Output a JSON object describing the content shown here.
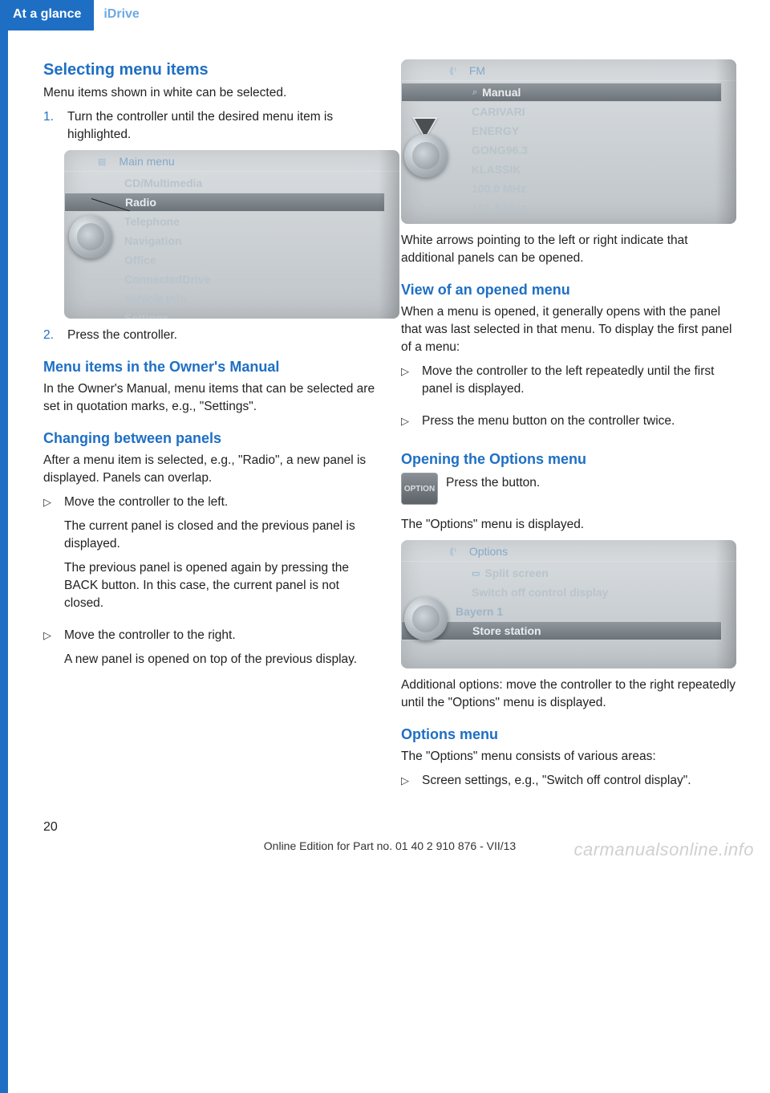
{
  "header": {
    "tab": "At a glance",
    "sub": "iDrive"
  },
  "page_number": "20",
  "footer_line": "Online Edition for Part no. 01 40 2 910 876 - VII/13",
  "watermark": "carmanualsonline.info",
  "left": {
    "h_selecting": "Selecting menu items",
    "p_selecting": "Menu items shown in white can be selected.",
    "step1": "Turn the controller until the desired menu item is highlighted.",
    "step2": "Press the controller.",
    "screen1": {
      "title": "Main menu",
      "items": [
        "CD/Multimedia",
        "Radio",
        "Telephone",
        "Navigation",
        "Office",
        "ConnectedDrive",
        "Vehicle Info",
        "Settings"
      ],
      "selected_index": 1
    },
    "h_menuitems": "Menu items in the Owner's Manual",
    "p_menuitems": "In the Owner's Manual, menu items that can be selected are set in quotation marks, e.g., \"Settings\".",
    "h_changing": "Changing between panels",
    "p_changing": "After a menu item is selected, e.g., \"Radio\", a new panel is displayed. Panels can overlap.",
    "bullet_left_1a": "Move the controller to the left.",
    "bullet_left_1b": "The current panel is closed and the previ­ous panel is displayed.",
    "bullet_left_1c": "The previous panel is opened again by pressing the BACK button. In this case, the current panel is not closed.",
    "bullet_left_2a": "Move the controller to the right.",
    "bullet_left_2b": "A new panel is opened on top of the previ­ous display."
  },
  "right": {
    "screen2": {
      "title": "FM",
      "items": [
        "Manual",
        "CARIVARI",
        "ENERGY",
        "GONG96.3",
        "KLASSIK",
        "100.0  MHz",
        "101.3  MHz"
      ],
      "selected_index": 0
    },
    "p_after_screen2": "White arrows pointing to the left or right indi­cate that additional panels can be opened.",
    "h_view": "View of an opened menu",
    "p_view": "When a menu is opened, it generally opens with the panel that was last selected in that menu. To display the first panel of a menu:",
    "bullet_view_1": "Move the controller to the left repeatedly until the first panel is displayed.",
    "bullet_view_2": "Press the menu button on the controller twice.",
    "h_opening": "Opening the Options menu",
    "option_btn_label": "OPTION",
    "p_press": "Press the button.",
    "p_options_displayed": "The \"Options\" menu is displayed.",
    "screen3": {
      "title": "Options",
      "group1": [
        "Split screen",
        "Switch off control display"
      ],
      "group2_label": "Bayern 1",
      "group2_item": "Store station"
    },
    "p_additional": "Additional options: move the controller to the right repeatedly until the \"Options\" menu is displayed.",
    "h_options_menu": "Options menu",
    "p_options_menu": "The \"Options\" menu consists of various areas:",
    "bullet_options": "Screen settings, e.g., \"Switch off control display\"."
  }
}
